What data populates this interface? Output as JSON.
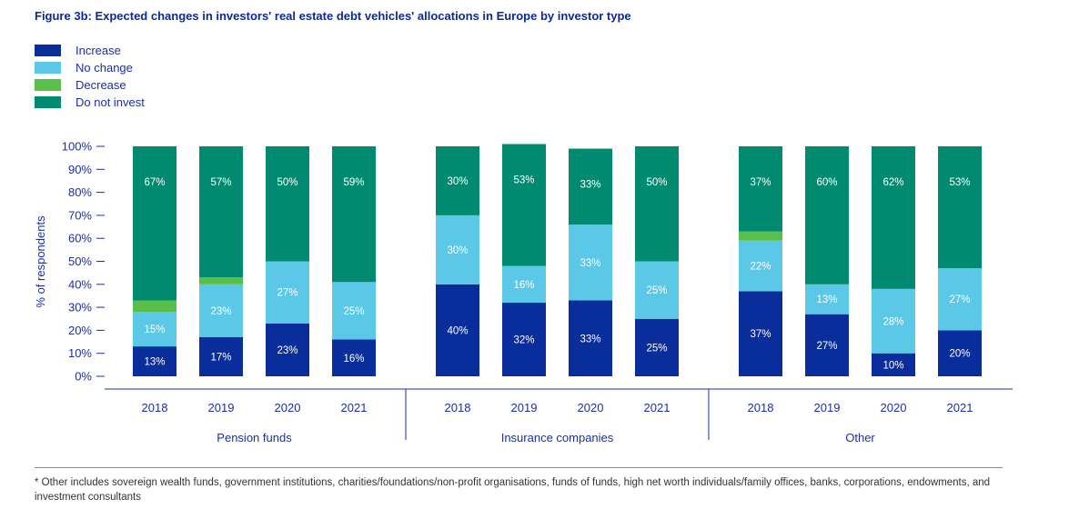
{
  "title": "Figure 3b: Expected changes in investors' real estate debt vehicles' allocations in Europe by investor type",
  "legend": [
    {
      "label": "Increase",
      "color": "#0a2d9c"
    },
    {
      "label": "No change",
      "color": "#5bc8e8"
    },
    {
      "label": "Decrease",
      "color": "#5abf4a"
    },
    {
      "label": "Do not invest",
      "color": "#008a70"
    }
  ],
  "footnote": "* Other includes sovereign wealth funds, government institutions, charities/foundations/non-profit organisations, funds of funds, high net worth individuals/family offices, banks, corporations, endowments, and investment consultants",
  "chart_data": {
    "type": "bar",
    "stacked": true,
    "ylabel": "% of respondents",
    "ylim": [
      0,
      100
    ],
    "yticks": [
      "0%",
      "10%",
      "20%",
      "30%",
      "40%",
      "50%",
      "60%",
      "70%",
      "80%",
      "90%",
      "100%"
    ],
    "groups": [
      {
        "name": "Pension funds",
        "bars": [
          {
            "year": "2018",
            "increase": 13,
            "no_change": 15,
            "decrease": 5,
            "do_not_invest": 67,
            "labels": [
              "13%",
              "15%",
              "",
              "67%"
            ]
          },
          {
            "year": "2019",
            "increase": 17,
            "no_change": 23,
            "decrease": 3,
            "do_not_invest": 57,
            "labels": [
              "17%",
              "23%",
              "",
              "57%"
            ]
          },
          {
            "year": "2020",
            "increase": 23,
            "no_change": 27,
            "decrease": 0,
            "do_not_invest": 50,
            "labels": [
              "23%",
              "27%",
              "",
              "50%"
            ]
          },
          {
            "year": "2021",
            "increase": 16,
            "no_change": 25,
            "decrease": 0,
            "do_not_invest": 59,
            "labels": [
              "16%",
              "25%",
              "",
              "59%"
            ]
          }
        ]
      },
      {
        "name": "Insurance companies",
        "bars": [
          {
            "year": "2018",
            "increase": 40,
            "no_change": 30,
            "decrease": 0,
            "do_not_invest": 30,
            "labels": [
              "40%",
              "30%",
              "",
              "30%"
            ]
          },
          {
            "year": "2019",
            "increase": 32,
            "no_change": 16,
            "decrease": 0,
            "do_not_invest": 53,
            "labels": [
              "32%",
              "16%",
              "",
              "53%"
            ]
          },
          {
            "year": "2020",
            "increase": 33,
            "no_change": 33,
            "decrease": 0,
            "do_not_invest": 33,
            "labels": [
              "33%",
              "33%",
              "",
              "33%"
            ]
          },
          {
            "year": "2021",
            "increase": 25,
            "no_change": 25,
            "decrease": 0,
            "do_not_invest": 50,
            "labels": [
              "25%",
              "25%",
              "",
              "50%"
            ]
          }
        ]
      },
      {
        "name": "Other",
        "bars": [
          {
            "year": "2018",
            "increase": 37,
            "no_change": 22,
            "decrease": 4,
            "do_not_invest": 37,
            "labels": [
              "37%",
              "22%",
              "",
              "37%"
            ]
          },
          {
            "year": "2019",
            "increase": 27,
            "no_change": 13,
            "decrease": 0,
            "do_not_invest": 60,
            "labels": [
              "27%",
              "13%",
              "",
              "60%"
            ]
          },
          {
            "year": "2020",
            "increase": 10,
            "no_change": 28,
            "decrease": 0,
            "do_not_invest": 62,
            "labels": [
              "10%",
              "28%",
              "",
              "62%"
            ]
          },
          {
            "year": "2021",
            "increase": 20,
            "no_change": 27,
            "decrease": 0,
            "do_not_invest": 53,
            "labels": [
              "20%",
              "27%",
              "",
              "53%"
            ]
          }
        ]
      }
    ]
  }
}
